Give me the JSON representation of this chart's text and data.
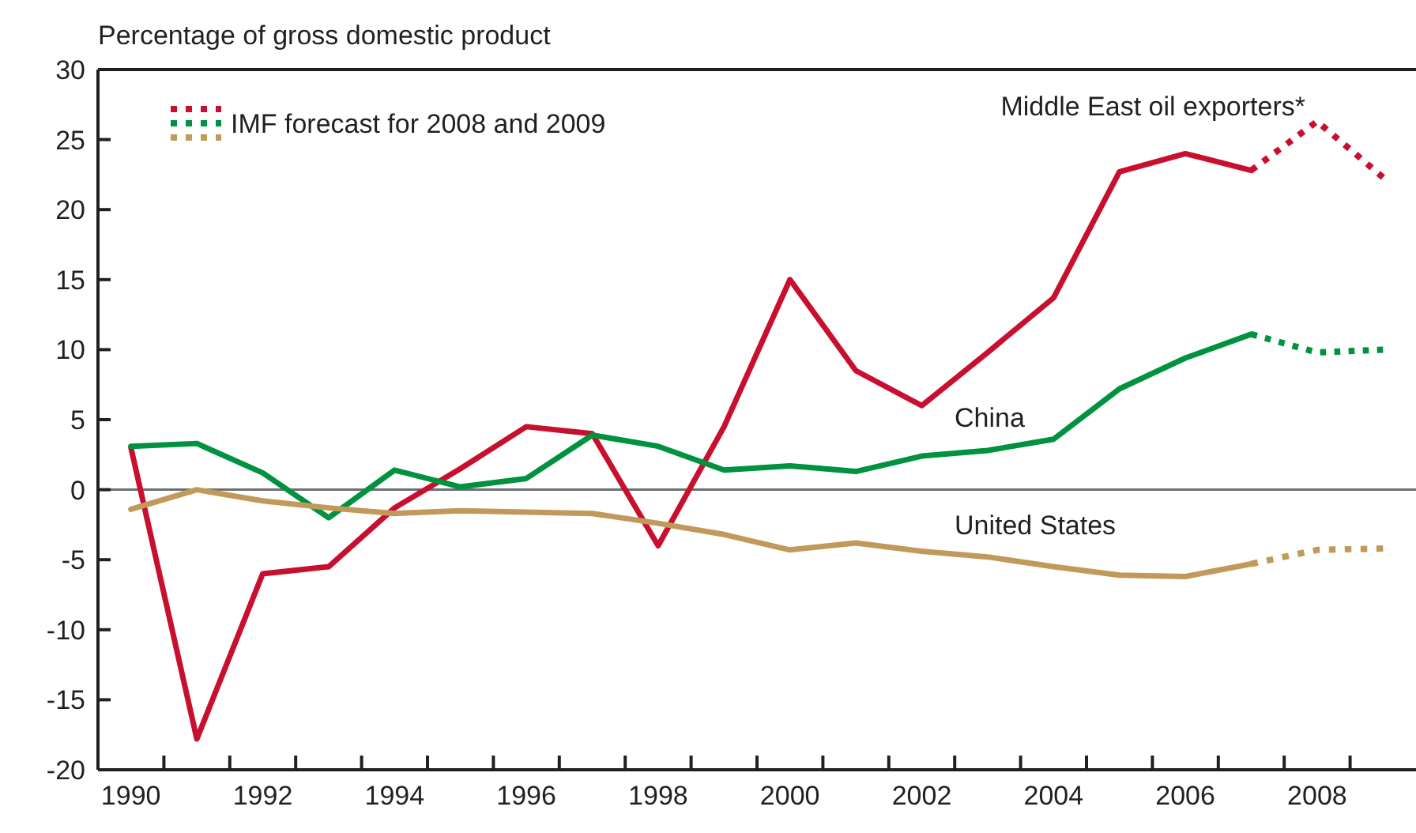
{
  "chart_data": {
    "type": "line",
    "ylabel": "Percentage of gross domestic product",
    "legend": "top left",
    "grid": false,
    "xlim": [
      1989.5,
      2009.5
    ],
    "xticks": [
      1990,
      {
        "value": 1990.5,
        "label": null
      },
      1992,
      {
        "value": 1991.5,
        "label": null
      },
      {
        "value": 1992.5,
        "label": null
      },
      {
        "value": 1993.5,
        "label": null
      },
      1994,
      {
        "value": 1994.5,
        "label": null
      },
      {
        "value": 1995.5,
        "label": null
      },
      1996,
      {
        "value": 1996.5,
        "label": null
      },
      {
        "value": 1997.5,
        "label": null
      },
      1998,
      {
        "value": 1998.5,
        "label": null
      },
      {
        "value": 1999.5,
        "label": null
      },
      2000,
      {
        "value": 2000.5,
        "label": null
      },
      {
        "value": 2001.5,
        "label": null
      },
      2002,
      {
        "value": 2002.5,
        "label": null
      },
      {
        "value": 2003.5,
        "label": null
      },
      2004,
      {
        "value": 2004.5,
        "label": null
      },
      {
        "value": 2005.5,
        "label": null
      },
      2006,
      {
        "value": 2006.5,
        "label": null
      },
      {
        "value": 2007.5,
        "label": null
      },
      2008,
      {
        "value": 2008.5,
        "label": null
      }
    ],
    "ylim": [
      -20,
      30
    ],
    "yticks": [
      -20,
      -15,
      -10,
      -5,
      0,
      5,
      10,
      15,
      20,
      25,
      30
    ],
    "annotations": [
      "Middle East oil exporters*",
      "China",
      "United States"
    ],
    "ref_lines": [
      {
        "axis": "y",
        "value": 0,
        "color": "#6d6e71"
      }
    ],
    "series": [
      {
        "color": "#c8102e",
        "x": [
          1990,
          1991,
          1992,
          1993,
          1994,
          1995,
          1996,
          1997,
          1998,
          1999,
          2000,
          2001,
          2002,
          2003,
          2004,
          2005,
          2006,
          2007
        ],
        "values": [
          3,
          -17.8,
          -6,
          -5.5,
          -1.3,
          1.5,
          4.5,
          4,
          -4,
          4.5,
          15,
          8.5,
          6,
          9.8,
          13.7,
          22.7,
          24,
          22.8
        ]
      },
      {
        "color": "#00923f",
        "x": [
          1990,
          1991,
          1992,
          1993,
          1994,
          1995,
          1996,
          1997,
          1998,
          1999,
          2000,
          2001,
          2002,
          2003,
          2004,
          2005,
          2006,
          2007
        ],
        "values": [
          3.1,
          3.3,
          1.2,
          -2,
          1.4,
          0.2,
          0.8,
          3.9,
          3.1,
          1.4,
          1.7,
          1.3,
          2.4,
          2.8,
          3.6,
          7.2,
          9.4,
          11.1
        ]
      },
      {
        "color": "#c19a5b",
        "x": [
          1990,
          1991,
          1992,
          1993,
          1994,
          1995,
          1996,
          1997,
          1998,
          1999,
          2000,
          2001,
          2002,
          2003,
          2004,
          2005,
          2006,
          2007
        ],
        "values": [
          -1.4,
          0,
          -0.8,
          -1.3,
          -1.7,
          -1.5,
          -1.6,
          -1.7,
          -2.4,
          -3.2,
          -4.3,
          -3.8,
          -4.4,
          -4.8,
          -5.5,
          -6.1,
          -6.2,
          -5.3
        ]
      },
      {
        "name": "IMF forecast for 2008 and 2009",
        "color": "#c8102e",
        "line_style": "dotted",
        "x": [
          2007,
          2008,
          2009
        ],
        "values": [
          22.8,
          26.3,
          22.3
        ]
      },
      {
        "color": "#00923f",
        "line_style": "dotted",
        "x": [
          2007,
          2008,
          2009
        ],
        "values": [
          11.1,
          9.8,
          10
        ]
      },
      {
        "color": "#c19a5b",
        "line_style": "dotted",
        "x": [
          2007,
          2008,
          2009
        ],
        "values": [
          -5.3,
          -4.3,
          -4.2
        ]
      }
    ]
  }
}
